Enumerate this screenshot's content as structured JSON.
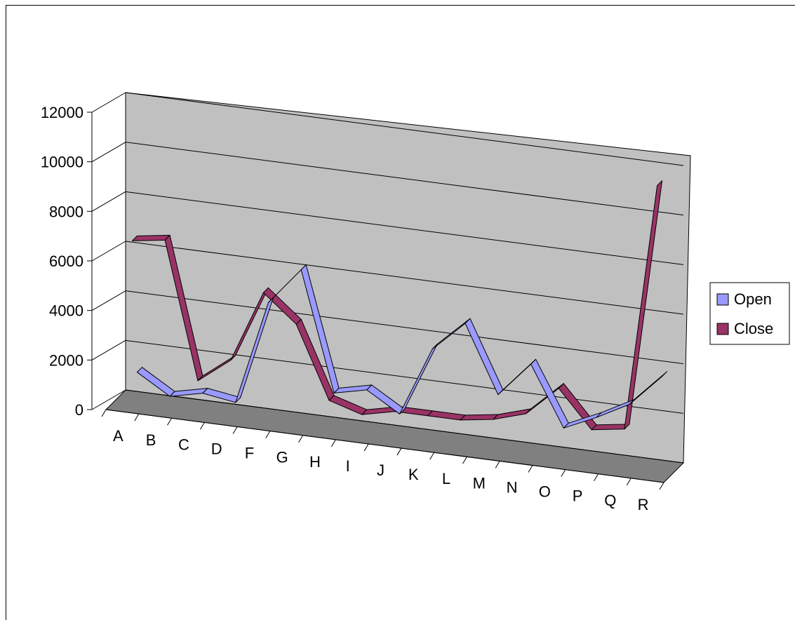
{
  "chart_data": {
    "type": "line",
    "style": "3d",
    "categories": [
      "A",
      "B",
      "C",
      "D",
      "F",
      "G",
      "H",
      "I",
      "J",
      "K",
      "L",
      "M",
      "N",
      "O",
      "P",
      "Q",
      "R"
    ],
    "series": [
      {
        "name": "Open",
        "color": "#9999ff",
        "values": [
          1000,
          200,
          500,
          300,
          4500,
          6000,
          1200,
          1500,
          700,
          3500,
          4700,
          2000,
          3400,
          1000,
          1600,
          2300,
          3600
        ]
      },
      {
        "name": "Close",
        "color": "#993366",
        "values": [
          6500,
          6700,
          1200,
          2200,
          5100,
          4000,
          1100,
          700,
          1000,
          1000,
          1000,
          1200,
          1600,
          2800,
          1300,
          1500,
          11500
        ]
      }
    ],
    "yticks": [
      "0",
      "2000",
      "4000",
      "6000",
      "8000",
      "10000",
      "12000"
    ],
    "ylim": [
      0,
      12000
    ],
    "grid": true,
    "legend": "right",
    "walls": {
      "back": "#c0c0c0",
      "floor": "#808080"
    }
  }
}
